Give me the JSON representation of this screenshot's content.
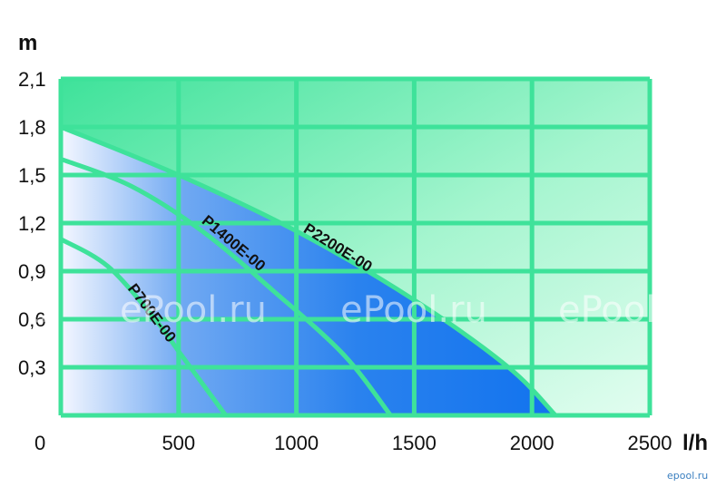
{
  "chart_data": {
    "type": "line",
    "xlabel": "l/h",
    "ylabel": "m",
    "xlim": [
      0,
      2500
    ],
    "ylim": [
      0,
      2.1
    ],
    "grid": true,
    "x_ticks": [
      "500",
      "1000",
      "1500",
      "2000",
      "2500"
    ],
    "y_ticks": [
      "0,3",
      "0,6",
      "0,9",
      "1,2",
      "1,5",
      "1,8",
      "2,1"
    ],
    "origin_label": "0",
    "series": [
      {
        "name": "P700E-00",
        "x": [
          0,
          200,
          400,
          500,
          600,
          700
        ],
        "y": [
          1.1,
          0.93,
          0.6,
          0.4,
          0.2,
          0.0
        ]
      },
      {
        "name": "P1400E-00",
        "x": [
          0,
          300,
          600,
          900,
          1200,
          1400
        ],
        "y": [
          1.6,
          1.43,
          1.15,
          0.78,
          0.38,
          0.0
        ]
      },
      {
        "name": "P2200E-00",
        "x": [
          0,
          500,
          1000,
          1500,
          1900,
          2100
        ],
        "y": [
          1.8,
          1.5,
          1.15,
          0.72,
          0.3,
          0.0
        ]
      }
    ],
    "colors": {
      "grid": "#3ee29a",
      "background_light": "#d9fbe9",
      "background_dark": "#3ee29a",
      "fill_light": "#f2f6ff",
      "fill_dark": "#1476ee"
    }
  },
  "watermarks": [
    "l.ru",
    "ePool.ru",
    "ePool.ru",
    "ePool.ru"
  ],
  "corner_watermark": "epool.ru"
}
